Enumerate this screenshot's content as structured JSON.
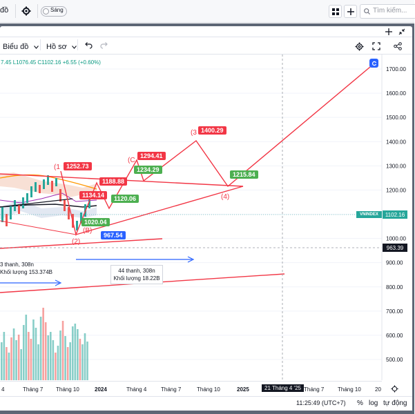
{
  "topbar": {
    "tab_label": "đồ",
    "theme_label": "Sáng",
    "search_placeholder": "Tìm kiếm..."
  },
  "toolbar": {
    "chart_label": "Biểu đồ",
    "profile_label": "Hồ sơ"
  },
  "legend": {
    "ohlc_text": "7.45  L1076.45  C1102.16",
    "change_text": "+6.55 (+0.60%)"
  },
  "chart_data": {
    "type": "line",
    "y_axis_ticks": [
      "1700.00",
      "1600.00",
      "1500.00",
      "1400.00",
      "1300.00",
      "1200.00",
      "1100.00",
      "1000.00",
      "900.00",
      "800.00",
      "700.00",
      "600.00",
      "500.00"
    ],
    "ylim": [
      460,
      1740
    ],
    "x_axis_ticks": [
      "4",
      "Tháng 7",
      "Tháng 10",
      "2024",
      "Tháng 4",
      "Tháng 7",
      "Tháng 10",
      "2025",
      "Tháng 7",
      "Tháng 10",
      "20"
    ],
    "crosshair_x_label": "21 Tháng 4 '25",
    "crosshair_y_label": "963.39",
    "symbol_label": "VNINDEX",
    "last_price": "1102.16",
    "labels": [
      {
        "text": "1252.73",
        "color": "red"
      },
      {
        "text": "1188.88",
        "color": "red"
      },
      {
        "text": "1134.14",
        "color": "red"
      },
      {
        "text": "1294.41",
        "color": "red"
      },
      {
        "text": "1400.29",
        "color": "red"
      },
      {
        "text": "1234.29",
        "color": "green"
      },
      {
        "text": "1120.06",
        "color": "green"
      },
      {
        "text": "1020.04",
        "color": "green"
      },
      {
        "text": "1215.84",
        "color": "green"
      },
      {
        "text": "967.54",
        "color": "blue"
      }
    ],
    "wave_labels": [
      "(1",
      "(C",
      "(3",
      "(4)",
      "(2)",
      "(B)"
    ],
    "ranges": [
      {
        "line1": "3 thanh, 308n",
        "line2": "Khối lượng 153.374B"
      },
      {
        "line1": "44 thanh, 308n",
        "line2": "Khối lượng 18.22B"
      }
    ],
    "volume_bars": [
      55,
      70,
      48,
      40,
      62,
      75,
      58,
      66,
      45,
      80,
      95,
      70,
      60,
      88,
      76,
      52,
      92,
      105,
      84,
      65,
      70,
      58,
      40,
      50,
      72,
      86,
      64,
      48,
      55,
      78,
      82,
      74,
      60,
      52,
      68,
      56
    ]
  },
  "bottombar": {
    "time": "11:25:49 (UTC+7)",
    "percent": "%",
    "log": "log",
    "auto": "tự động"
  },
  "colors": {
    "red": "#f23645",
    "green": "#4caf50",
    "blue": "#2962ff",
    "volume": "#26a69a",
    "volume_red": "#ef5350"
  }
}
